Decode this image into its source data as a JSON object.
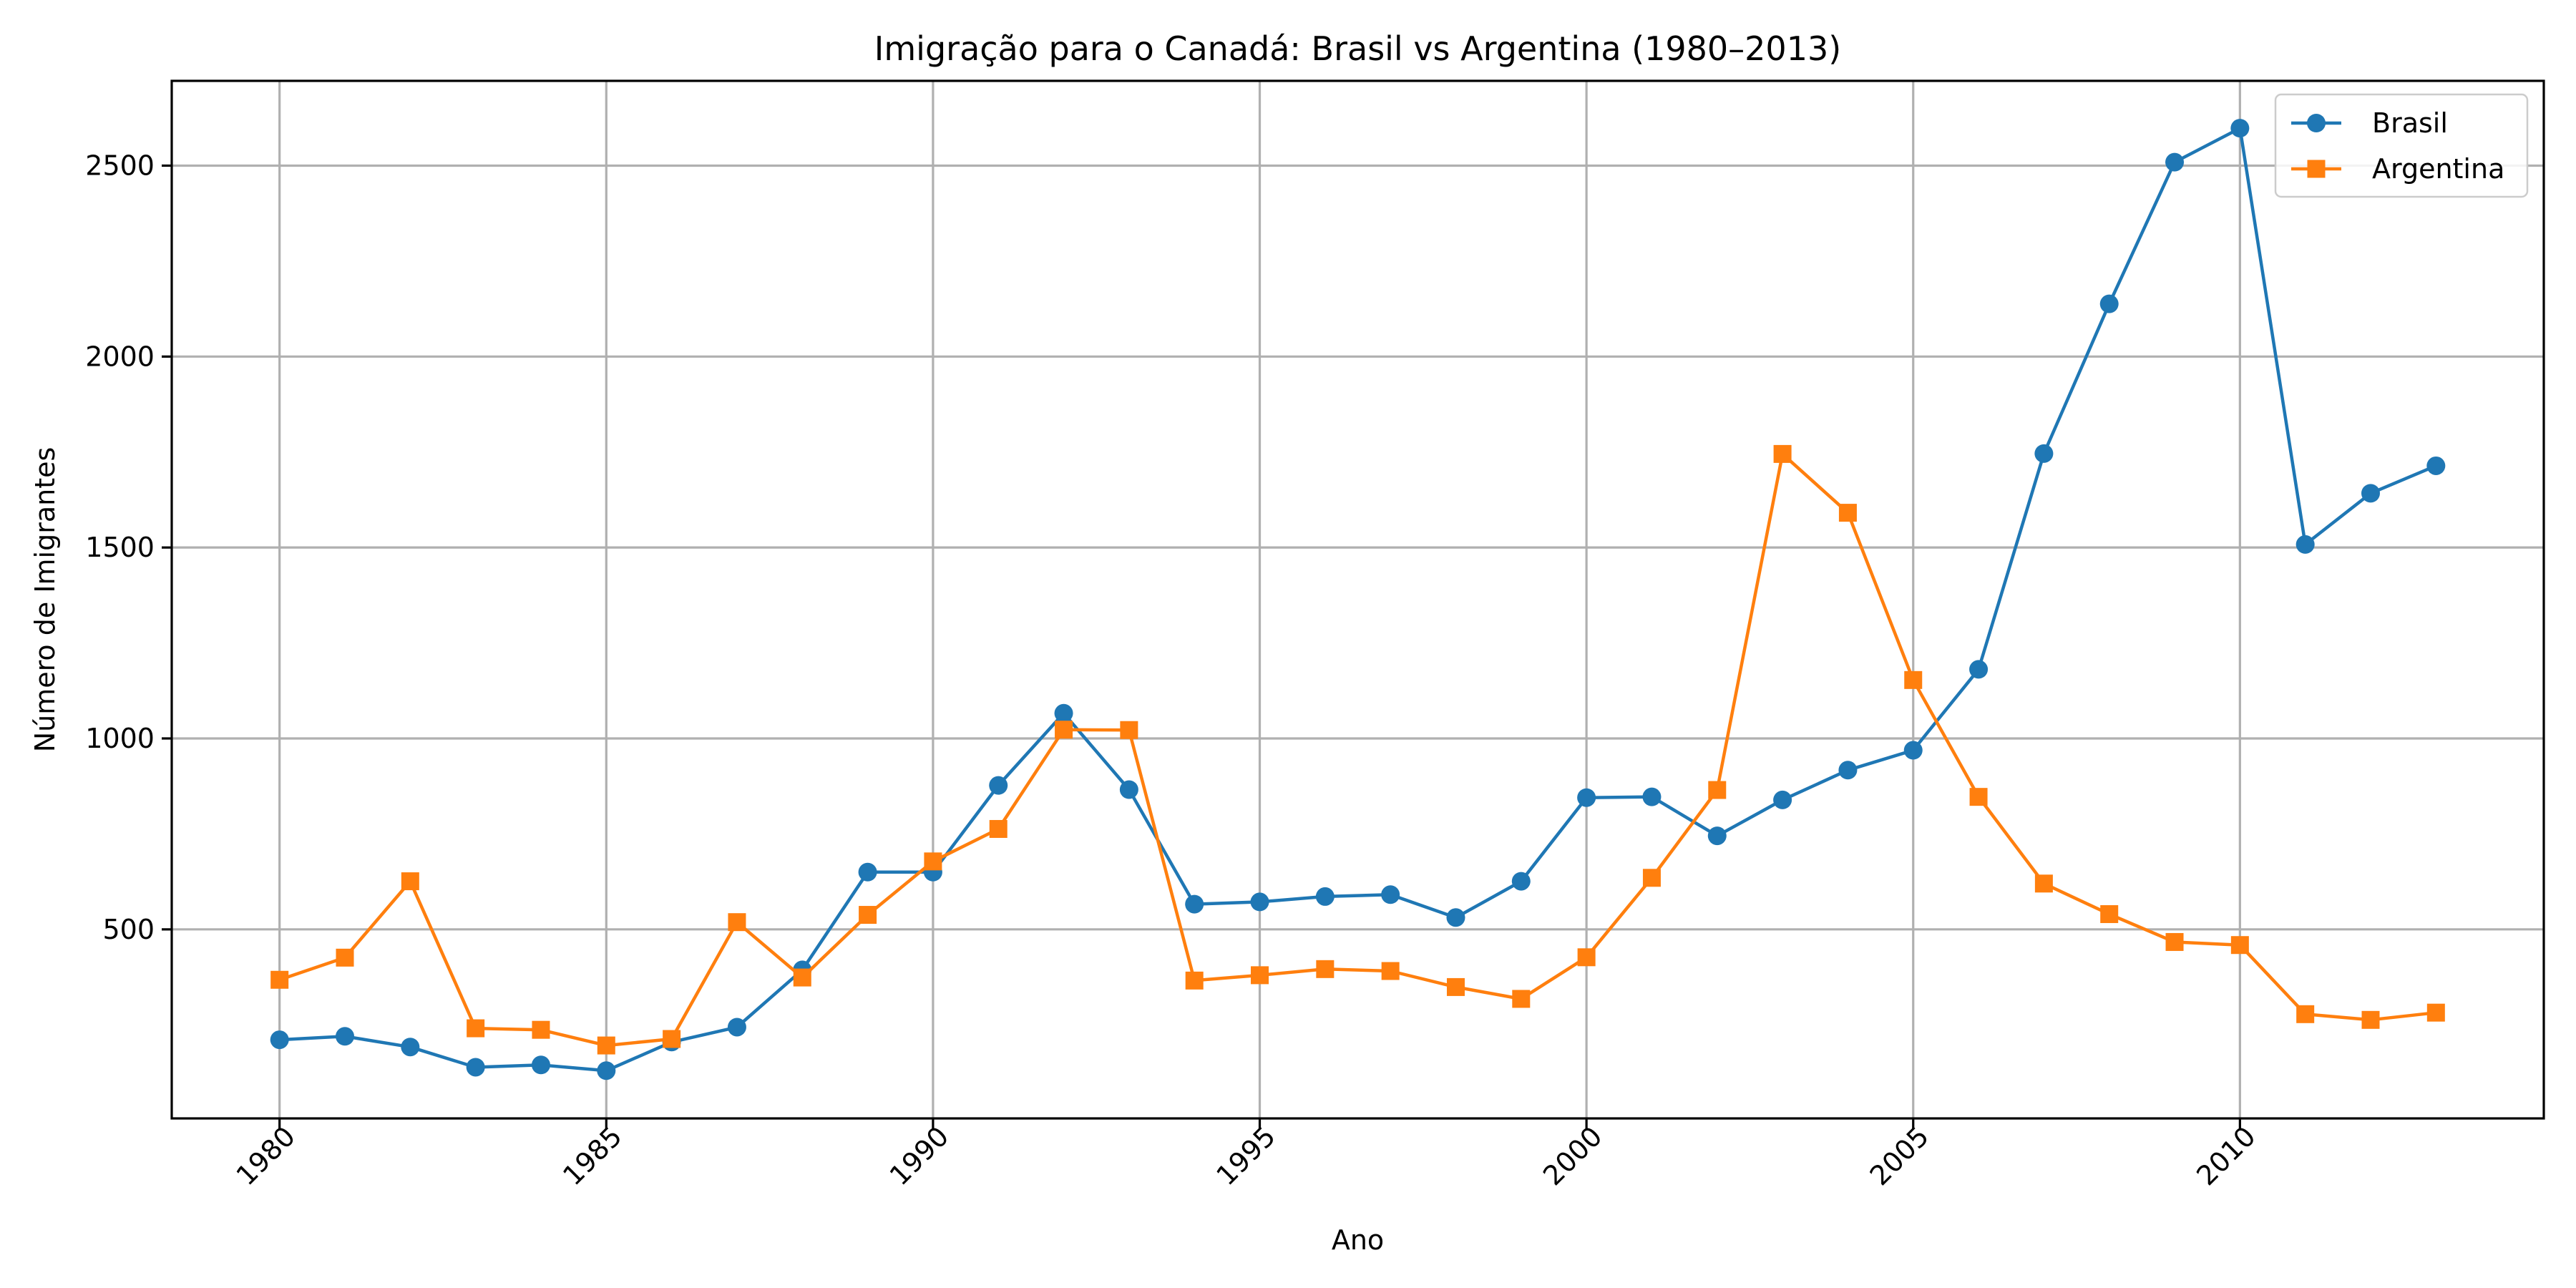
{
  "chart_data": {
    "type": "line",
    "title": "Imigração para o Canadá: Brasil vs Argentina (1980–2013)",
    "xlabel": "Ano",
    "ylabel": "Número de Imigrantes",
    "x": [
      1980,
      1981,
      1982,
      1983,
      1984,
      1985,
      1986,
      1987,
      1988,
      1989,
      1990,
      1991,
      1992,
      1993,
      1994,
      1995,
      1996,
      1997,
      1998,
      1999,
      2000,
      2001,
      2002,
      2003,
      2004,
      2005,
      2006,
      2007,
      2008,
      2009,
      2010,
      2011,
      2012,
      2013
    ],
    "xlim": [
      1978.35,
      2014.65
    ],
    "ylim": [
      5,
      2722
    ],
    "xticks": [
      "1980",
      "1985",
      "1990",
      "1995",
      "2000",
      "2005",
      "2010"
    ],
    "yticks": [
      "500",
      "1000",
      "1500",
      "2000",
      "2500"
    ],
    "grid": true,
    "legend_position": "top-right",
    "series": [
      {
        "name": "Brasil",
        "color": "#1f77b4",
        "marker": "circle",
        "values": [
          211,
          220,
          192,
          139,
          145,
          130,
          205,
          244,
          394,
          650,
          650,
          877,
          1066,
          866,
          566,
          572,
          586,
          591,
          531,
          626,
          845,
          847,
          745,
          839,
          917,
          969,
          1181,
          1746,
          2138,
          2509,
          2598,
          1508,
          1642,
          1714
        ]
      },
      {
        "name": "Argentina",
        "color": "#ff7f0e",
        "marker": "square",
        "values": [
          368,
          426,
          626,
          241,
          237,
          196,
          213,
          519,
          374,
          538,
          678,
          763,
          1023,
          1022,
          366,
          380,
          396,
          391,
          349,
          318,
          427,
          635,
          865,
          1745,
          1591,
          1153,
          847,
          620,
          540,
          467,
          459,
          278,
          263,
          282
        ]
      }
    ]
  }
}
